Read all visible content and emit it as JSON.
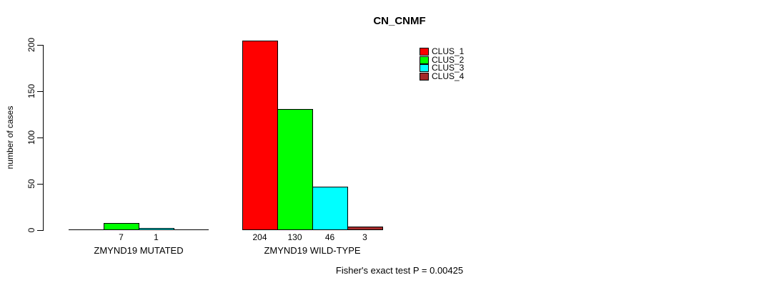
{
  "title": "CN_CNMF",
  "footer": "Fisher's exact test P = 0.00425",
  "chart_data": {
    "type": "bar",
    "title": "CN_CNMF",
    "xlabel": "",
    "ylabel": "number of cases",
    "categories": [
      "ZMYND19 MUTATED",
      "ZMYND19 WILD-TYPE"
    ],
    "series": [
      {
        "name": "CLUS_1",
        "color": "#FF0000",
        "values": [
          0,
          204
        ]
      },
      {
        "name": "CLUS_2",
        "color": "#00FF00",
        "values": [
          7,
          130
        ]
      },
      {
        "name": "CLUS_3",
        "color": "#00FFFF",
        "values": [
          1,
          46
        ]
      },
      {
        "name": "CLUS_4",
        "color": "#A52A2A",
        "values": [
          0,
          3
        ]
      }
    ],
    "bar_value_labels": [
      [
        null,
        "7",
        "1",
        null
      ],
      [
        "204",
        "130",
        "46",
        "3"
      ]
    ],
    "yticks": [
      0,
      50,
      100,
      150,
      200
    ],
    "ylim": [
      0,
      200
    ],
    "grid": false,
    "legend_position": "top-right",
    "legend_entries": [
      "CLUS_1",
      "CLUS_2",
      "CLUS_3",
      "CLUS_4"
    ],
    "annotation": "Fisher's exact test P = 0.00425",
    "axis_color": "#000000",
    "background_color": "#FFFFFF"
  }
}
